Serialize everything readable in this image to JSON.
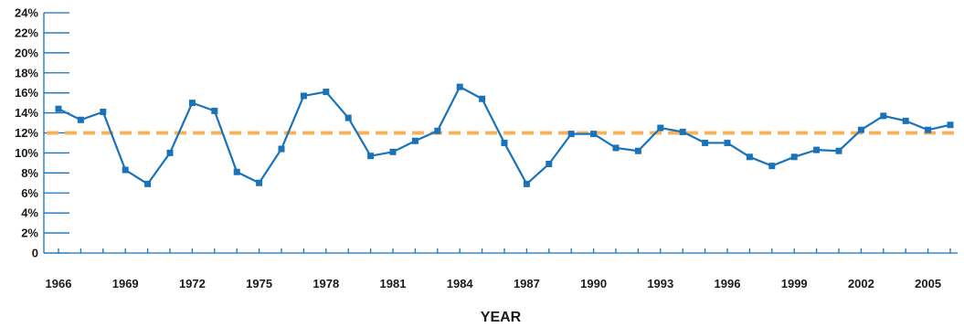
{
  "chart_data": {
    "type": "line",
    "xlabel": "YEAR",
    "ylabel": "",
    "ylim": [
      0,
      24
    ],
    "y_ticks": [
      0,
      2,
      4,
      6,
      8,
      10,
      12,
      14,
      16,
      18,
      20,
      22,
      24
    ],
    "y_tick_labels": [
      "0",
      "2%",
      "4%",
      "6%",
      "8%",
      "10%",
      "12%",
      "14%",
      "16%",
      "18%",
      "20%",
      "22%",
      "24%"
    ],
    "x_tick_labels": [
      "1966",
      "1969",
      "1972",
      "1975",
      "1978",
      "1981",
      "1984",
      "1987",
      "1990",
      "1993",
      "1996",
      "1999",
      "2002",
      "2005"
    ],
    "x": [
      1966,
      1967,
      1968,
      1969,
      1970,
      1971,
      1972,
      1973,
      1974,
      1975,
      1976,
      1977,
      1978,
      1979,
      1980,
      1981,
      1982,
      1983,
      1984,
      1985,
      1986,
      1987,
      1988,
      1989,
      1990,
      1991,
      1992,
      1993,
      1994,
      1995,
      1996,
      1997,
      1998,
      1999,
      2000,
      2001,
      2002,
      2003,
      2004,
      2005,
      2006
    ],
    "series": [
      {
        "color": "#1a72b8",
        "values": [
          14.4,
          13.3,
          14.1,
          8.3,
          6.9,
          10.0,
          15.0,
          14.2,
          8.1,
          7.0,
          10.4,
          15.7,
          16.1,
          13.5,
          9.7,
          10.1,
          11.2,
          12.2,
          16.6,
          15.4,
          11.0,
          6.9,
          8.9,
          11.9,
          11.9,
          10.5,
          10.2,
          12.5,
          12.1,
          11.0,
          11.0,
          9.6,
          8.7,
          9.6,
          10.3,
          10.2,
          12.3,
          13.7,
          13.2,
          12.3,
          12.8
        ]
      }
    ],
    "reference_line": {
      "value": 12,
      "color": "#f5b45c"
    },
    "grid": false,
    "legend": "none"
  }
}
